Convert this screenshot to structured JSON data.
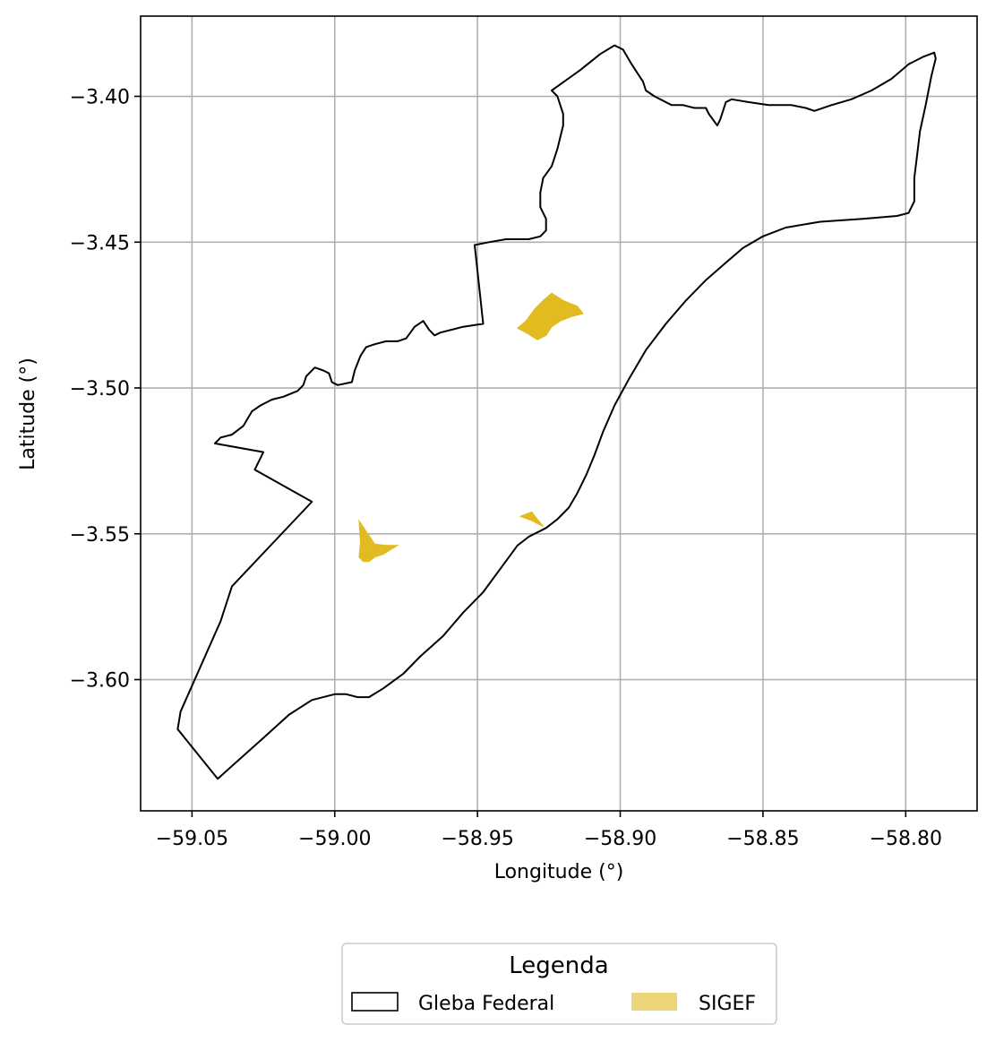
{
  "chart_data": {
    "type": "map",
    "xlabel": "Longitude (°)",
    "ylabel": "Latitude (°)",
    "xlim": [
      -59.068,
      -58.775
    ],
    "ylim": [
      -3.645,
      -3.3725
    ],
    "xticks": [
      -59.05,
      -59.0,
      -58.95,
      -58.9,
      -58.85,
      -58.8
    ],
    "xtick_labels": [
      "−59.05",
      "−59.00",
      "−58.95",
      "−58.90",
      "−58.85",
      "−58.80"
    ],
    "yticks": [
      -3.4,
      -3.45,
      -3.5,
      -3.55,
      -3.6
    ],
    "ytick_labels": [
      "−3.40",
      "−3.45",
      "−3.50",
      "−3.55",
      "−3.60"
    ],
    "grid": true,
    "colors": {
      "boundary": "#000000",
      "sigef": "#e1bb1f",
      "grid": "#b0b0b0"
    },
    "gleba_federal": [
      [
        -58.924,
        -3.398
      ],
      [
        -58.914,
        -3.391
      ],
      [
        -58.907,
        -3.3855
      ],
      [
        -58.902,
        -3.3825
      ],
      [
        -58.899,
        -3.384
      ],
      [
        -58.896,
        -3.389
      ],
      [
        -58.892,
        -3.395
      ],
      [
        -58.891,
        -3.398
      ],
      [
        -58.888,
        -3.4
      ],
      [
        -58.882,
        -3.403
      ],
      [
        -58.878,
        -3.403
      ],
      [
        -58.874,
        -3.404
      ],
      [
        -58.87,
        -3.404
      ],
      [
        -58.869,
        -3.406
      ],
      [
        -58.866,
        -3.41
      ],
      [
        -58.865,
        -3.408
      ],
      [
        -58.864,
        -3.405
      ],
      [
        -58.863,
        -3.402
      ],
      [
        -58.861,
        -3.401
      ],
      [
        -58.855,
        -3.402
      ],
      [
        -58.848,
        -3.403
      ],
      [
        -58.84,
        -3.403
      ],
      [
        -58.835,
        -3.404
      ],
      [
        -58.832,
        -3.405
      ],
      [
        -58.826,
        -3.403
      ],
      [
        -58.819,
        -3.401
      ],
      [
        -58.812,
        -3.398
      ],
      [
        -58.805,
        -3.394
      ],
      [
        -58.799,
        -3.389
      ],
      [
        -58.794,
        -3.3865
      ],
      [
        -58.79,
        -3.385
      ],
      [
        -58.7895,
        -3.387
      ],
      [
        -58.791,
        -3.393
      ],
      [
        -58.793,
        -3.403
      ],
      [
        -58.795,
        -3.412
      ],
      [
        -58.796,
        -3.42
      ],
      [
        -58.797,
        -3.428
      ],
      [
        -58.797,
        -3.436
      ],
      [
        -58.799,
        -3.44
      ],
      [
        -58.803,
        -3.441
      ],
      [
        -58.815,
        -3.442
      ],
      [
        -58.83,
        -3.443
      ],
      [
        -58.842,
        -3.445
      ],
      [
        -58.85,
        -3.448
      ],
      [
        -58.857,
        -3.452
      ],
      [
        -58.863,
        -3.457
      ],
      [
        -58.87,
        -3.463
      ],
      [
        -58.877,
        -3.47
      ],
      [
        -58.884,
        -3.478
      ],
      [
        -58.891,
        -3.487
      ],
      [
        -58.897,
        -3.497
      ],
      [
        -58.902,
        -3.506
      ],
      [
        -58.906,
        -3.515
      ],
      [
        -58.909,
        -3.523
      ],
      [
        -58.912,
        -3.53
      ],
      [
        -58.915,
        -3.536
      ],
      [
        -58.918,
        -3.541
      ],
      [
        -58.922,
        -3.545
      ],
      [
        -58.926,
        -3.548
      ],
      [
        -58.932,
        -3.551
      ],
      [
        -58.936,
        -3.554
      ],
      [
        -58.942,
        -3.562
      ],
      [
        -58.948,
        -3.57
      ],
      [
        -58.955,
        -3.577
      ],
      [
        -58.962,
        -3.585
      ],
      [
        -58.97,
        -3.592
      ],
      [
        -58.976,
        -3.598
      ],
      [
        -58.983,
        -3.603
      ],
      [
        -58.988,
        -3.606
      ],
      [
        -58.992,
        -3.606
      ],
      [
        -58.996,
        -3.605
      ],
      [
        -59.0,
        -3.605
      ],
      [
        -59.008,
        -3.607
      ],
      [
        -59.016,
        -3.612
      ],
      [
        -59.025,
        -3.62
      ],
      [
        -59.033,
        -3.627
      ],
      [
        -59.041,
        -3.634
      ],
      [
        -59.055,
        -3.617
      ],
      [
        -59.054,
        -3.611
      ],
      [
        -59.04,
        -3.58
      ],
      [
        -59.036,
        -3.568
      ],
      [
        -59.008,
        -3.539
      ],
      [
        -59.028,
        -3.528
      ],
      [
        -59.025,
        -3.522
      ],
      [
        -59.042,
        -3.519
      ],
      [
        -59.04,
        -3.517
      ],
      [
        -59.036,
        -3.516
      ],
      [
        -59.032,
        -3.513
      ],
      [
        -59.029,
        -3.508
      ],
      [
        -59.026,
        -3.506
      ],
      [
        -59.022,
        -3.504
      ],
      [
        -59.018,
        -3.503
      ],
      [
        -59.013,
        -3.501
      ],
      [
        -59.011,
        -3.499
      ],
      [
        -59.01,
        -3.496
      ],
      [
        -59.007,
        -3.493
      ],
      [
        -59.004,
        -3.494
      ],
      [
        -59.002,
        -3.495
      ],
      [
        -59.001,
        -3.498
      ],
      [
        -58.999,
        -3.499
      ],
      [
        -58.994,
        -3.498
      ],
      [
        -58.993,
        -3.494
      ],
      [
        -58.991,
        -3.489
      ],
      [
        -58.989,
        -3.486
      ],
      [
        -58.986,
        -3.485
      ],
      [
        -58.982,
        -3.484
      ],
      [
        -58.978,
        -3.484
      ],
      [
        -58.975,
        -3.483
      ],
      [
        -58.972,
        -3.479
      ],
      [
        -58.969,
        -3.477
      ],
      [
        -58.967,
        -3.48
      ],
      [
        -58.965,
        -3.482
      ],
      [
        -58.963,
        -3.481
      ],
      [
        -58.955,
        -3.479
      ],
      [
        -58.948,
        -3.478
      ],
      [
        -58.951,
        -3.451
      ],
      [
        -58.946,
        -3.45
      ],
      [
        -58.94,
        -3.449
      ],
      [
        -58.932,
        -3.449
      ],
      [
        -58.928,
        -3.448
      ],
      [
        -58.926,
        -3.446
      ],
      [
        -58.926,
        -3.442
      ],
      [
        -58.928,
        -3.438
      ],
      [
        -58.928,
        -3.433
      ],
      [
        -58.927,
        -3.428
      ],
      [
        -58.924,
        -3.424
      ],
      [
        -58.923,
        -3.421
      ],
      [
        -58.922,
        -3.418
      ],
      [
        -58.921,
        -3.414
      ],
      [
        -58.92,
        -3.41
      ],
      [
        -58.92,
        -3.406
      ],
      [
        -58.921,
        -3.403
      ],
      [
        -58.922,
        -3.4
      ]
    ],
    "sigef": [
      [
        [
          -58.924,
          -3.4675
        ],
        [
          -58.92,
          -3.47
        ],
        [
          -58.915,
          -3.472
        ],
        [
          -58.913,
          -3.4745
        ],
        [
          -58.917,
          -3.4755
        ],
        [
          -58.921,
          -3.477
        ],
        [
          -58.924,
          -3.479
        ],
        [
          -58.926,
          -3.482
        ],
        [
          -58.929,
          -3.4835
        ],
        [
          -58.933,
          -3.481
        ],
        [
          -58.936,
          -3.4795
        ],
        [
          -58.933,
          -3.477
        ],
        [
          -58.93,
          -3.473
        ],
        [
          -58.927,
          -3.47
        ]
      ],
      [
        [
          -58.9915,
          -3.5455
        ],
        [
          -58.986,
          -3.5535
        ],
        [
          -58.982,
          -3.554
        ],
        [
          -58.978,
          -3.554
        ],
        [
          -58.983,
          -3.557
        ],
        [
          -58.986,
          -3.558
        ],
        [
          -58.988,
          -3.5595
        ],
        [
          -58.99,
          -3.5595
        ],
        [
          -58.9915,
          -3.558
        ],
        [
          -58.991,
          -3.553
        ]
      ],
      [
        [
          -58.935,
          -3.544
        ],
        [
          -58.931,
          -3.5425
        ],
        [
          -58.927,
          -3.5475
        ],
        [
          -58.931,
          -3.5455
        ]
      ]
    ]
  },
  "legend": {
    "title": "Legenda",
    "items": [
      {
        "label": "Gleba Federal",
        "style": "outline"
      },
      {
        "label": "SIGEF",
        "style": "fill"
      }
    ]
  }
}
